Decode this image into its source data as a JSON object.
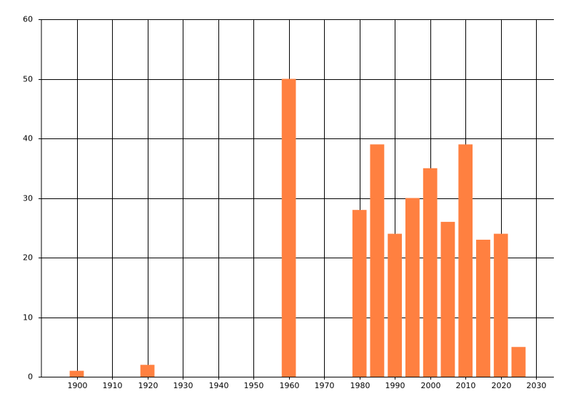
{
  "chart_data": {
    "type": "bar",
    "x": [
      1900,
      1920,
      1960,
      1980,
      1985,
      1990,
      1995,
      2000,
      2005,
      2010,
      2015,
      2020,
      2025
    ],
    "values": [
      1,
      2,
      50,
      28,
      39,
      24,
      30,
      35,
      26,
      39,
      23,
      24,
      5
    ],
    "color": "#ff8040",
    "xlim": [
      1890,
      2035
    ],
    "xticks": [
      1900,
      1910,
      1920,
      1930,
      1940,
      1950,
      1960,
      1970,
      1980,
      1990,
      2000,
      2010,
      2020,
      2030
    ],
    "ylim": [
      0,
      60
    ],
    "yticks": [
      0,
      10,
      20,
      30,
      40,
      50,
      60
    ],
    "grid": true
  }
}
